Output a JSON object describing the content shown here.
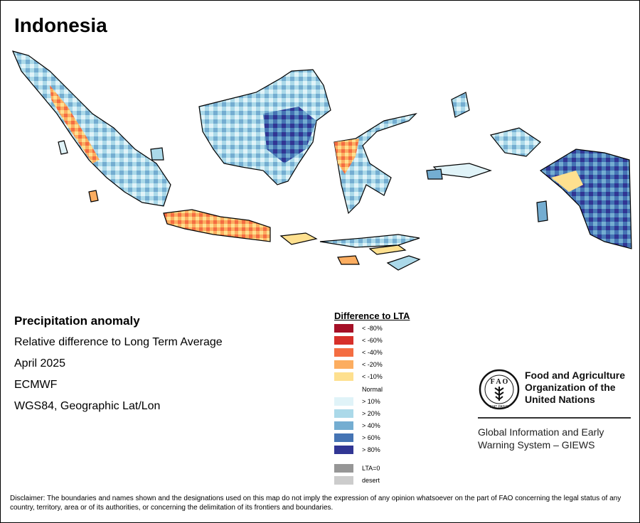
{
  "title": "Indonesia",
  "info": {
    "heading": "Precipitation anomaly",
    "subtitle": "Relative difference to Long Term Average",
    "period": "April 2025",
    "source": "ECMWF",
    "projection": "WGS84, Geographic Lat/Lon"
  },
  "legend": {
    "title": "Difference to LTA",
    "items": [
      {
        "label": "< -80%",
        "color": "#a50f26"
      },
      {
        "label": "< -60%",
        "color": "#d7302a"
      },
      {
        "label": "< -40%",
        "color": "#f46d42"
      },
      {
        "label": "< -20%",
        "color": "#fcad60"
      },
      {
        "label": "< -10%",
        "color": "#fee08f"
      },
      {
        "label": "Normal",
        "color": "#ffffff"
      },
      {
        "label": "> 10%",
        "color": "#e0f3f8"
      },
      {
        "label": "> 20%",
        "color": "#abd9e9"
      },
      {
        "label": "> 40%",
        "color": "#74add1"
      },
      {
        "label": "> 60%",
        "color": "#4574b4"
      },
      {
        "label": "> 80%",
        "color": "#313694"
      },
      {
        "label": "LTA=0",
        "color": "#969696"
      },
      {
        "label": "desert",
        "color": "#cccccc"
      }
    ]
  },
  "organization": {
    "name": "Food and Agriculture Organization of the United Nations",
    "program": "Global Information and Early Warning System – GIEWS",
    "logo_letters": "F A O",
    "logo_motto": "FIAT PANIS"
  },
  "disclaimer": "Disclaimer: The boundaries and names shown and the designations used on this map do not imply the expression of any opinion whatsoever on the part of FAO concerning the legal status of any country, territory, area or of its authorities, or concerning the delimitation of its frontiers and boundaries."
}
